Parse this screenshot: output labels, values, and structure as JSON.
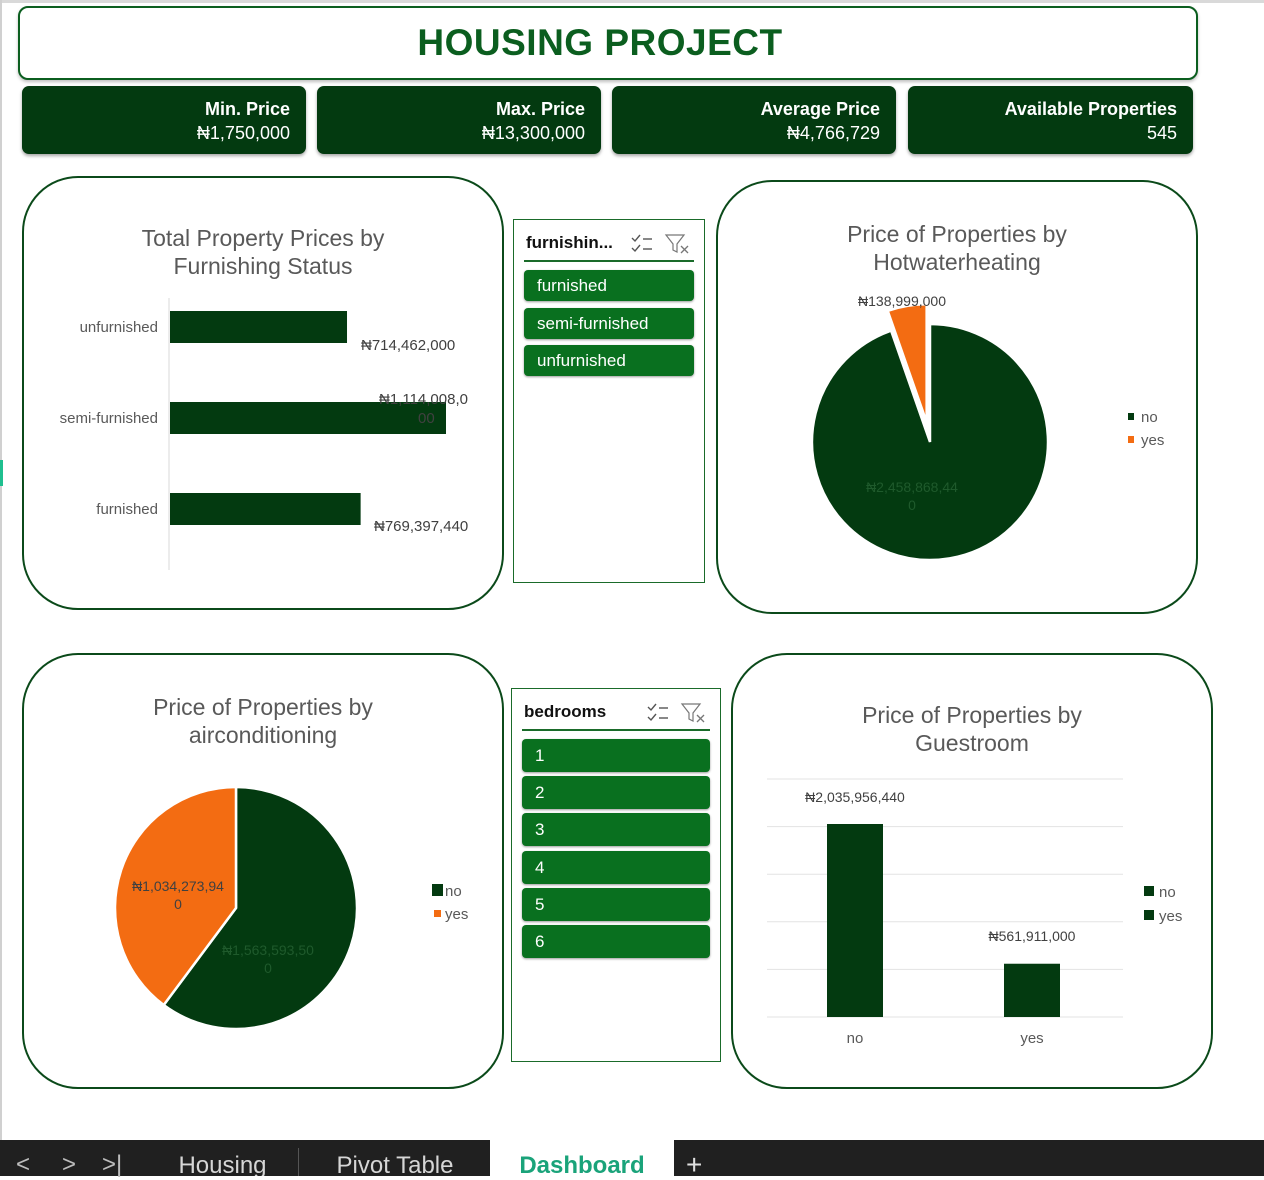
{
  "title": "HOUSING PROJECT",
  "kpis": [
    {
      "label": "Min. Price",
      "value": "₦1,750,000"
    },
    {
      "label": "Max. Price",
      "value": "₦13,300,000"
    },
    {
      "label": "Average  Price",
      "value": "₦4,766,729"
    },
    {
      "label": "Available Properties",
      "value": "545"
    }
  ],
  "charts": {
    "furnishing": {
      "title_line1": "Total Property Prices by",
      "title_line2": "Furnishing Status",
      "labels": [
        "₦714,462,000",
        "₦1,114,008,0",
        "00",
        "₦769,397,440"
      ]
    },
    "hotwater": {
      "title_line1": "Price of Properties by",
      "title_line2": "Hotwaterheating",
      "labels": [
        "₦138,999,000",
        "₦2,458,868,44",
        "0"
      ],
      "legend": [
        "no",
        "yes"
      ]
    },
    "aircon": {
      "title_line1": "Price of Properties by",
      "title_line2": "airconditioning",
      "labels": [
        "₦1,034,273,94",
        "0",
        "₦1,563,593,50",
        "0"
      ],
      "legend": [
        "no",
        "yes"
      ]
    },
    "guestroom": {
      "title_line1": "Price of Properties by",
      "title_line2": "Guestroom",
      "labels": [
        "₦2,035,956,440",
        "₦561,911,000"
      ],
      "legend": [
        "no",
        "yes"
      ]
    }
  },
  "chart_data": [
    {
      "type": "bar",
      "orientation": "horizontal",
      "title": "Total Property Prices by Furnishing Status",
      "categories": [
        "unfurnished",
        "semi-furnished",
        "furnished"
      ],
      "values": [
        714462000,
        1114008000,
        769397440
      ],
      "colors": [
        "#033a10"
      ]
    },
    {
      "type": "pie",
      "title": "Price of Properties by Hotwaterheating",
      "categories": [
        "no",
        "yes"
      ],
      "values": [
        2458868440,
        138999000
      ],
      "colors": [
        "#033a10",
        "#f36c12"
      ],
      "legend": "right"
    },
    {
      "type": "pie",
      "title": "Price of Properties by airconditioning",
      "categories": [
        "no",
        "yes"
      ],
      "values": [
        1563593500,
        1034273940
      ],
      "colors": [
        "#033a10",
        "#f36c12"
      ],
      "legend": "right"
    },
    {
      "type": "bar",
      "title": "Price of Properties by Guestroom",
      "categories": [
        "no",
        "yes"
      ],
      "values": [
        2035956440,
        561911000
      ],
      "colors": [
        "#033a10"
      ],
      "legend": "right",
      "grid": true
    }
  ],
  "slicers": {
    "furnishing": {
      "title": "furnishin...",
      "items": [
        "furnished",
        "semi-furnished",
        "unfurnished"
      ]
    },
    "bedrooms": {
      "title": "bedrooms",
      "items": [
        "1",
        "2",
        "3",
        "4",
        "5",
        "6"
      ]
    }
  },
  "colors": {
    "dark_green": "#033a10",
    "orange": "#f36c12",
    "slicer_green": "#09701f",
    "accent": "#1aa37a"
  },
  "tabs": {
    "nav_prev": "<",
    "nav_next": ">",
    "nav_last": ">|",
    "items": [
      "Housing",
      "Pivot Table",
      "Dashboard"
    ],
    "add": "+"
  }
}
